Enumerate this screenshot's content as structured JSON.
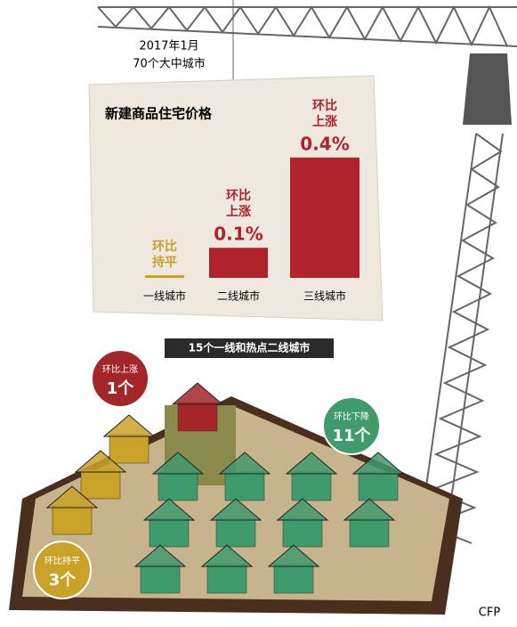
{
  "chart_data": [
    {
      "type": "bar",
      "title": "新建商品住宅价格",
      "annotations": [
        "2017年1月",
        "70个大中城市"
      ],
      "categories": [
        "一线城市",
        "二线城市",
        "三线城市"
      ],
      "values": [
        0,
        0.1,
        0.4
      ],
      "value_labels": [
        [
          "环比",
          "持平"
        ],
        [
          "环比",
          "上涨",
          "0.1%"
        ],
        [
          "环比",
          "上涨",
          "0.4%"
        ]
      ],
      "colors": [
        "#c9a227",
        "#b0222c",
        "#b0222c"
      ],
      "ylim": [
        0,
        0.45
      ]
    },
    {
      "type": "pictogram",
      "title": "15个一线和热点二线城市",
      "categories": [
        "环比上涨",
        "环比下降",
        "环比持平"
      ],
      "values": [
        1,
        11,
        3
      ],
      "value_labels": [
        "1个",
        "11个",
        "3个"
      ],
      "colors": [
        "#a3262a",
        "#3f9a6c",
        "#c9a227"
      ]
    }
  ],
  "source": "CFP"
}
